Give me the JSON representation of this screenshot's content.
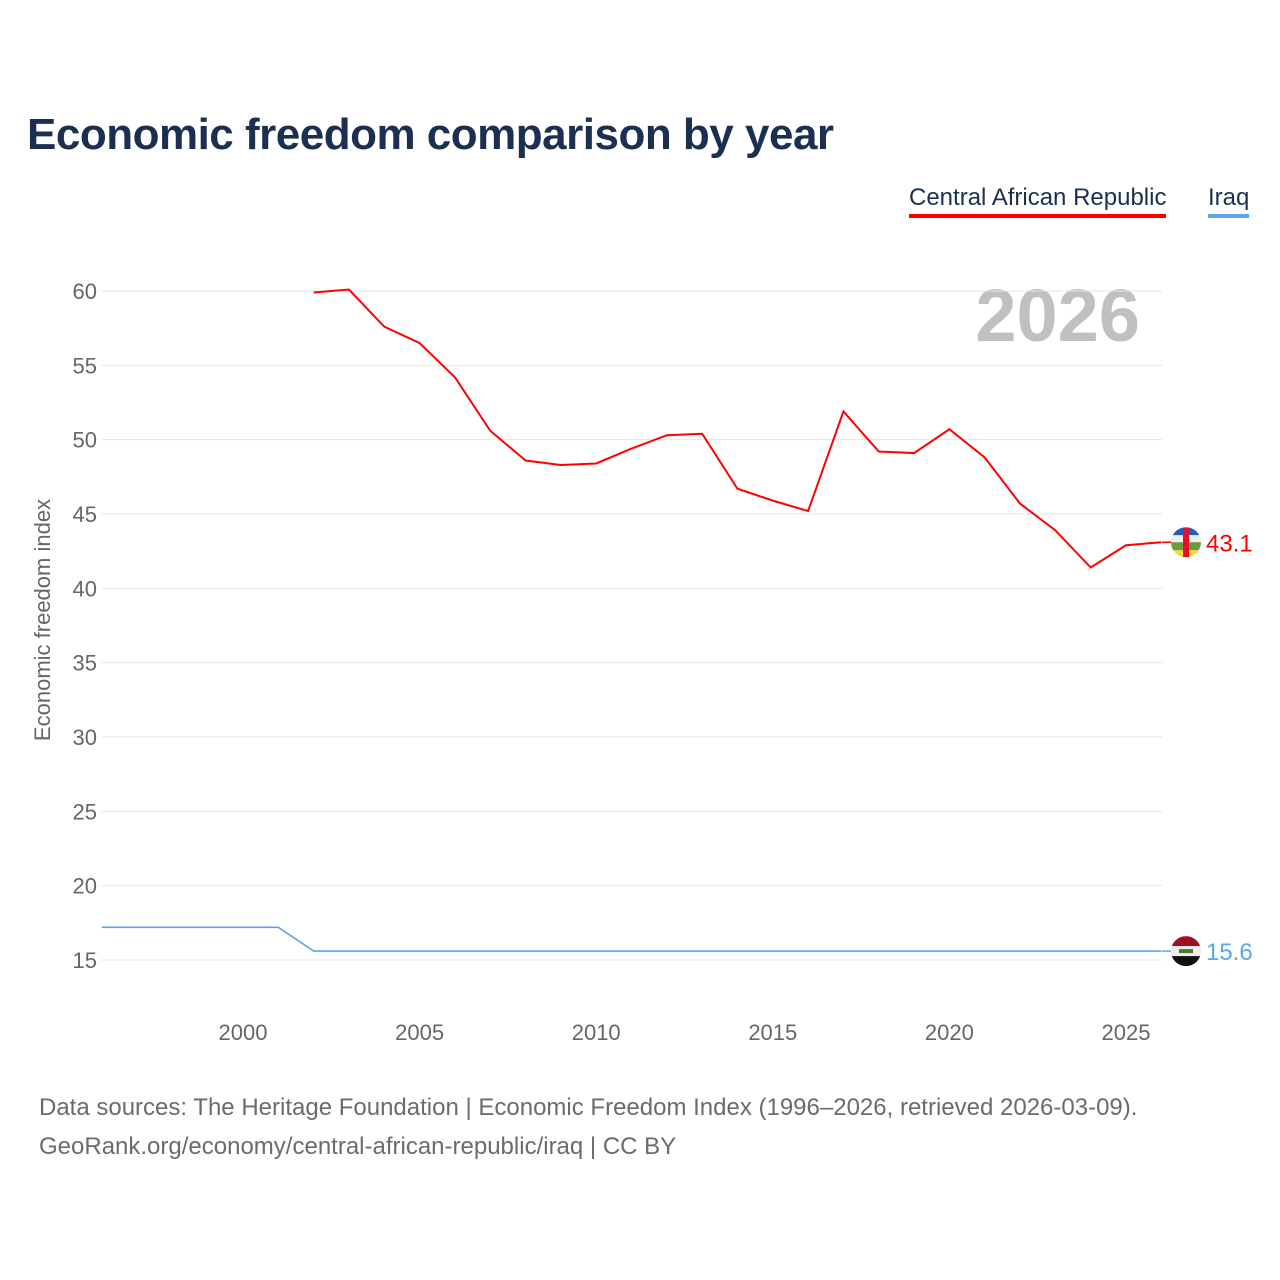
{
  "title": "Economic freedom comparison by year",
  "legend": [
    {
      "label": "Central African Republic",
      "color": "#ff0000"
    },
    {
      "label": "Iraq",
      "color": "#5aa5ee"
    }
  ],
  "year_watermark": "2026",
  "source_line1": "Data sources: The Heritage Foundation | Economic Freedom Index (1996–2026, retrieved 2026-03-09).",
  "source_line2": "GeoRank.org/economy/central-african-republic/iraq | CC BY",
  "chart_data": {
    "type": "line",
    "title": "Economic freedom comparison by year",
    "ylabel": "Economic freedom index",
    "xlabel": "",
    "xlim": [
      1996,
      2026
    ],
    "ylim": [
      15,
      60
    ],
    "yticks": [
      15,
      20,
      25,
      30,
      35,
      40,
      45,
      50,
      55,
      60
    ],
    "xticks": [
      2000,
      2005,
      2010,
      2015,
      2020,
      2025
    ],
    "grid": true,
    "legend_position": "top-right",
    "series": [
      {
        "name": "Central African Republic",
        "color": "#ff0000",
        "end_label": "43.1",
        "x": [
          2002,
          2003,
          2004,
          2005,
          2006,
          2007,
          2008,
          2009,
          2010,
          2011,
          2012,
          2013,
          2014,
          2015,
          2016,
          2017,
          2018,
          2019,
          2020,
          2021,
          2022,
          2023,
          2024,
          2025,
          2026
        ],
        "y": [
          59.9,
          60.1,
          57.6,
          56.5,
          54.2,
          50.6,
          48.6,
          48.3,
          48.4,
          49.4,
          50.3,
          50.4,
          46.7,
          45.9,
          45.2,
          51.9,
          49.2,
          49.1,
          50.7,
          48.8,
          45.7,
          43.9,
          41.4,
          42.9,
          43.1
        ]
      },
      {
        "name": "Iraq",
        "color": "#5aa5ee",
        "end_label": "15.6",
        "x": [
          1996,
          1997,
          1998,
          1999,
          2000,
          2001,
          2002,
          2026
        ],
        "y": [
          17.2,
          17.2,
          17.2,
          17.2,
          17.2,
          17.2,
          15.6,
          15.6
        ]
      }
    ]
  }
}
